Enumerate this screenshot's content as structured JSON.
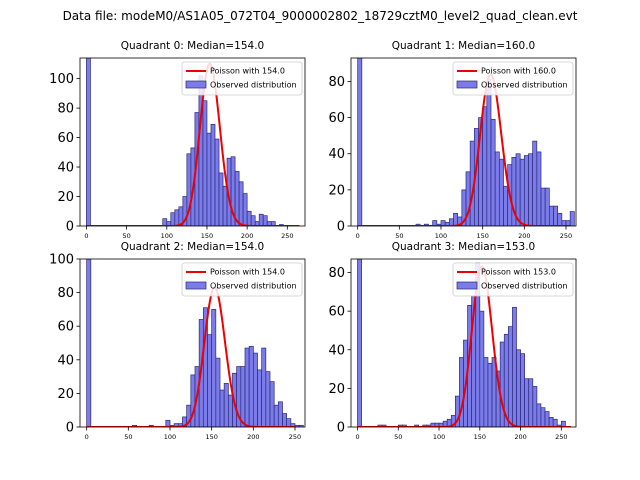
{
  "figure_title": "Data file: modeM0/AS1A05_072T04_9000002802_18729cztM0_level2_quad_clean.evt",
  "colors": {
    "bar_fill": "#7b7bea",
    "bar_edge": "#2a2a7a",
    "line": "#ee0000"
  },
  "chart_data": [
    {
      "type": "bar",
      "title": "Quadrant 0: Median=154.0",
      "xlim": [
        -8,
        272
      ],
      "ylim": [
        0,
        114
      ],
      "xticks": [
        0,
        50,
        100,
        150,
        200,
        250
      ],
      "yticks": [
        0,
        20,
        40,
        60,
        80,
        100
      ],
      "legend": {
        "position": "top-right",
        "entries": [
          "Poisson with 154.0",
          "Observed distribution"
        ]
      },
      "series": [
        {
          "name": "Observed distribution",
          "kind": "histogram",
          "bin_width": 5,
          "bins": [
            [
              0,
              114
            ],
            [
              95,
              5
            ],
            [
              100,
              3
            ],
            [
              105,
              9
            ],
            [
              110,
              11
            ],
            [
              115,
              13
            ],
            [
              120,
              20
            ],
            [
              125,
              49
            ],
            [
              130,
              53
            ],
            [
              135,
              77
            ],
            [
              140,
              102
            ],
            [
              145,
              85
            ],
            [
              150,
              63
            ],
            [
              155,
              69
            ],
            [
              160,
              59
            ],
            [
              165,
              36
            ],
            [
              170,
              27
            ],
            [
              175,
              46
            ],
            [
              180,
              47
            ],
            [
              185,
              37
            ],
            [
              190,
              30
            ],
            [
              195,
              22
            ],
            [
              200,
              10
            ],
            [
              205,
              7
            ],
            [
              210,
              3
            ],
            [
              215,
              8
            ],
            [
              220,
              7
            ],
            [
              225,
              3
            ],
            [
              230,
              3
            ],
            [
              240,
              1
            ]
          ]
        },
        {
          "name": "Poisson with 154.0",
          "kind": "line",
          "lambda": 154.0,
          "scale": 110,
          "x_range": [
            0,
            265
          ]
        }
      ]
    },
    {
      "type": "bar",
      "title": "Quadrant 1: Median=160.0",
      "xlim": [
        -8,
        262
      ],
      "ylim": [
        0,
        93
      ],
      "xticks": [
        0,
        50,
        100,
        150,
        200,
        250
      ],
      "yticks": [
        0,
        20,
        40,
        60,
        80
      ],
      "legend": {
        "position": "top-right",
        "entries": [
          "Poisson with 160.0",
          "Observed distribution"
        ]
      },
      "series": [
        {
          "name": "Observed distribution",
          "kind": "histogram",
          "bin_width": 5,
          "bins": [
            [
              0,
              93
            ],
            [
              70,
              1
            ],
            [
              80,
              1
            ],
            [
              90,
              3
            ],
            [
              95,
              1
            ],
            [
              100,
              3
            ],
            [
              105,
              2
            ],
            [
              110,
              4
            ],
            [
              115,
              7
            ],
            [
              120,
              5
            ],
            [
              125,
              20
            ],
            [
              130,
              30
            ],
            [
              135,
              47
            ],
            [
              140,
              54
            ],
            [
              145,
              60
            ],
            [
              150,
              66
            ],
            [
              155,
              81
            ],
            [
              160,
              59
            ],
            [
              165,
              41
            ],
            [
              170,
              37
            ],
            [
              175,
              22
            ],
            [
              180,
              34
            ],
            [
              185,
              38
            ],
            [
              190,
              40
            ],
            [
              195,
              37
            ],
            [
              200,
              39
            ],
            [
              205,
              40
            ],
            [
              210,
              47
            ],
            [
              215,
              41
            ],
            [
              220,
              21
            ],
            [
              225,
              21
            ],
            [
              230,
              11
            ],
            [
              235,
              11
            ],
            [
              240,
              7
            ],
            [
              245,
              3
            ],
            [
              250,
              3
            ],
            [
              255,
              8
            ]
          ]
        },
        {
          "name": "Poisson with 160.0",
          "kind": "line",
          "lambda": 160.0,
          "scale": 84,
          "x_range": [
            0,
            255
          ]
        }
      ]
    },
    {
      "type": "bar",
      "title": "Quadrant 2: Median=154.0",
      "xlim": [
        -8,
        262
      ],
      "ylim": [
        0,
        100
      ],
      "xticks": [
        0,
        50,
        100,
        150,
        200,
        250
      ],
      "yticks": [
        0,
        20,
        40,
        60,
        80,
        100
      ],
      "legend": {
        "position": "top-right",
        "entries": [
          "Poisson with 154.0",
          "Observed distribution"
        ]
      },
      "series": [
        {
          "name": "Observed distribution",
          "kind": "histogram",
          "bin_width": 5,
          "bins": [
            [
              0,
              100
            ],
            [
              55,
              1
            ],
            [
              75,
              1
            ],
            [
              95,
              4
            ],
            [
              100,
              1
            ],
            [
              105,
              2
            ],
            [
              110,
              2
            ],
            [
              115,
              6
            ],
            [
              120,
              13
            ],
            [
              125,
              31
            ],
            [
              130,
              36
            ],
            [
              135,
              64
            ],
            [
              140,
              71
            ],
            [
              145,
              55
            ],
            [
              150,
              70
            ],
            [
              155,
              41
            ],
            [
              160,
              22
            ],
            [
              165,
              26
            ],
            [
              170,
              19
            ],
            [
              175,
              32
            ],
            [
              180,
              36
            ],
            [
              185,
              36
            ],
            [
              190,
              47
            ],
            [
              195,
              48
            ],
            [
              200,
              44
            ],
            [
              205,
              34
            ],
            [
              210,
              47
            ],
            [
              215,
              33
            ],
            [
              220,
              27
            ],
            [
              225,
              13
            ],
            [
              230,
              15
            ],
            [
              235,
              8
            ],
            [
              240,
              5
            ],
            [
              245,
              2
            ],
            [
              250,
              1
            ],
            [
              255,
              1
            ]
          ]
        },
        {
          "name": "Poisson with 154.0",
          "kind": "line",
          "lambda": 154.0,
          "scale": 83,
          "x_range": [
            0,
            250
          ]
        }
      ]
    },
    {
      "type": "bar",
      "title": "Quadrant 3: Median=153.0",
      "xlim": [
        -8,
        268
      ],
      "ylim": [
        0,
        87
      ],
      "xticks": [
        0,
        50,
        100,
        150,
        200,
        250
      ],
      "yticks": [
        0,
        20,
        40,
        60,
        80
      ],
      "legend": {
        "position": "top-right",
        "entries": [
          "Poisson with 153.0",
          "Observed distribution"
        ]
      },
      "series": [
        {
          "name": "Observed distribution",
          "kind": "histogram",
          "bin_width": 5,
          "bins": [
            [
              0,
              87
            ],
            [
              25,
              1
            ],
            [
              30,
              1
            ],
            [
              50,
              1
            ],
            [
              55,
              1
            ],
            [
              70,
              1
            ],
            [
              80,
              1
            ],
            [
              85,
              1
            ],
            [
              90,
              2
            ],
            [
              95,
              2
            ],
            [
              100,
              2
            ],
            [
              105,
              3
            ],
            [
              110,
              4
            ],
            [
              115,
              6
            ],
            [
              120,
              16
            ],
            [
              125,
              36
            ],
            [
              130,
              45
            ],
            [
              135,
              63
            ],
            [
              140,
              68
            ],
            [
              145,
              85
            ],
            [
              150,
              60
            ],
            [
              155,
              36
            ],
            [
              160,
              33
            ],
            [
              165,
              36
            ],
            [
              170,
              29
            ],
            [
              175,
              44
            ],
            [
              180,
              48
            ],
            [
              185,
              52
            ],
            [
              190,
              62
            ],
            [
              195,
              40
            ],
            [
              200,
              38
            ],
            [
              205,
              25
            ],
            [
              210,
              25
            ],
            [
              215,
              21
            ],
            [
              220,
              12
            ],
            [
              225,
              10
            ],
            [
              230,
              8
            ],
            [
              235,
              5
            ],
            [
              240,
              4
            ],
            [
              245,
              1
            ],
            [
              250,
              3
            ]
          ]
        },
        {
          "name": "Poisson with 153.0",
          "kind": "line",
          "lambda": 153.0,
          "scale": 83,
          "x_range": [
            0,
            262
          ]
        }
      ]
    }
  ]
}
